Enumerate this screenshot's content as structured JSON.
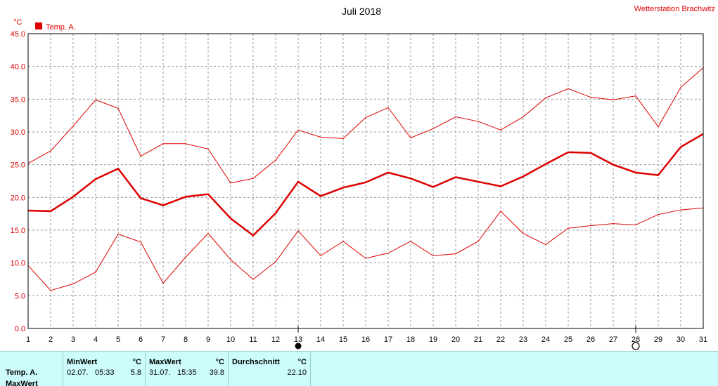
{
  "header": {
    "title": "Juli 2018",
    "station": "Wetterstation Brachwitz",
    "y_unit": "°C"
  },
  "colors": {
    "series": "#dd0000",
    "grid": "#999999",
    "panel_bg": "#ccfcfc"
  },
  "chart_data": {
    "type": "line",
    "title": "Juli 2018",
    "ylabel": "°C",
    "xlabel": "",
    "ylim": [
      0,
      45
    ],
    "yticks": [
      "0.0",
      "5.0",
      "10.0",
      "15.0",
      "20.0",
      "25.0",
      "30.0",
      "35.0",
      "40.0",
      "45.0"
    ],
    "x": [
      1,
      2,
      3,
      4,
      5,
      6,
      7,
      8,
      9,
      10,
      11,
      12,
      13,
      14,
      15,
      16,
      17,
      18,
      19,
      20,
      21,
      22,
      23,
      24,
      25,
      26,
      27,
      28,
      29,
      30,
      31
    ],
    "xlim": [
      1,
      31
    ],
    "grid": true,
    "legend": {
      "entries": [
        "Temp. A."
      ],
      "position": "top-left"
    },
    "series": [
      {
        "name": "Temp. A.",
        "role": "mean",
        "values": [
          18.0,
          17.9,
          20.1,
          22.8,
          24.4,
          19.9,
          18.8,
          20.1,
          20.5,
          16.8,
          14.2,
          17.6,
          22.4,
          20.2,
          21.5,
          22.3,
          23.8,
          22.9,
          21.6,
          23.1,
          22.4,
          21.7,
          23.2,
          25.1,
          26.9,
          26.8,
          25.0,
          23.8,
          23.4,
          27.7,
          29.7
        ]
      },
      {
        "role": "max",
        "values": [
          25.2,
          27.1,
          30.9,
          34.9,
          33.6,
          26.3,
          28.2,
          28.2,
          27.4,
          22.2,
          22.9,
          25.7,
          30.3,
          29.2,
          29.0,
          32.2,
          33.7,
          29.1,
          30.5,
          32.3,
          31.6,
          30.3,
          32.3,
          35.2,
          36.6,
          35.3,
          34.9,
          35.5,
          30.8,
          36.8,
          39.8
        ]
      },
      {
        "role": "min",
        "values": [
          9.6,
          5.8,
          6.8,
          8.6,
          14.4,
          13.2,
          6.9,
          10.9,
          14.5,
          10.5,
          7.5,
          10.2,
          14.9,
          11.1,
          13.3,
          10.7,
          11.5,
          13.3,
          11.1,
          11.4,
          13.3,
          17.9,
          14.5,
          12.8,
          15.3,
          15.7,
          16.0,
          15.8,
          17.4,
          18.1,
          18.4
        ]
      }
    ],
    "markers": [
      {
        "x": 13,
        "symbol": "new-moon"
      },
      {
        "x": 28,
        "symbol": "full-moon"
      }
    ]
  },
  "stats": {
    "row_label": "Temp. A.",
    "row_label_2": "MaxWert",
    "min": {
      "header": "MinWert",
      "unit": "°C",
      "date": "02.07.",
      "time": "05:33",
      "value": "5.8"
    },
    "max": {
      "header": "MaxWert",
      "unit": "°C",
      "date": "31.07.",
      "time": "15:35",
      "value": "39.8"
    },
    "avg": {
      "header": "Durchschnitt",
      "unit": "°C",
      "value": "22.10"
    }
  }
}
